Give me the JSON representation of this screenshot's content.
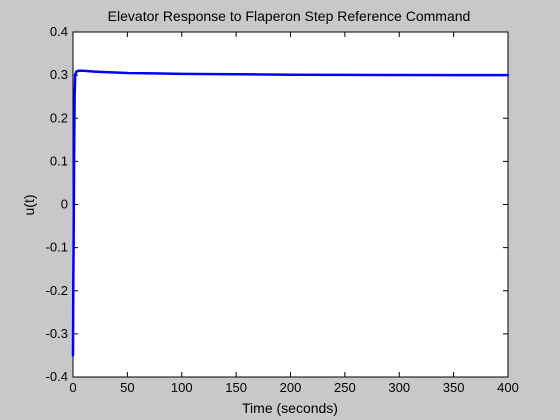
{
  "chart_data": {
    "type": "line",
    "title": "Elevator Response to Flaperon Step Reference Command",
    "xlabel": "Time (seconds)",
    "ylabel": "u(t)",
    "xlim": [
      0,
      400
    ],
    "ylim": [
      -0.4,
      0.4
    ],
    "xticks": [
      0,
      50,
      100,
      150,
      200,
      250,
      300,
      350,
      400
    ],
    "yticks": [
      -0.4,
      -0.3,
      -0.2,
      -0.1,
      0,
      0.1,
      0.2,
      0.3,
      0.4
    ],
    "xtick_labels": [
      "0",
      "50",
      "100",
      "150",
      "200",
      "250",
      "300",
      "350",
      "400"
    ],
    "ytick_labels": [
      "-0.4",
      "-0.3",
      "-0.2",
      "-0.1",
      "0",
      "0.1",
      "0.2",
      "0.3",
      "0.4"
    ],
    "grid": false,
    "line_color": "#0000ff",
    "series": [
      {
        "x": [
          0,
          0.3,
          0.6,
          1.0,
          1.5,
          2.0,
          3.0,
          5.0,
          10,
          20,
          30,
          50,
          75,
          100,
          150,
          200,
          250,
          300,
          350,
          400
        ],
        "y": [
          -0.35,
          -0.17,
          -0.08,
          0.1,
          0.25,
          0.3,
          0.308,
          0.31,
          0.31,
          0.308,
          0.307,
          0.305,
          0.304,
          0.303,
          0.302,
          0.301,
          0.3005,
          0.3002,
          0.3001,
          0.3
        ]
      }
    ]
  }
}
